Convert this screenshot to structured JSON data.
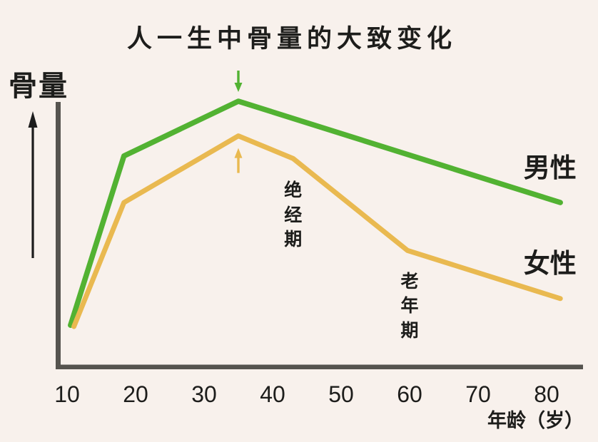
{
  "chart_data": {
    "type": "line",
    "title": "人一生中骨量的大致变化",
    "ylabel": "骨量",
    "xlabel": "年龄（岁）",
    "x_ticks": [
      10,
      20,
      30,
      40,
      50,
      60,
      70,
      80
    ],
    "xlim": [
      10,
      82
    ],
    "ylim": [
      0,
      105
    ],
    "grid": false,
    "y_scale_note": "no numeric y axis; values are relative bone mass, male peak = 100",
    "legend_position": "labels at right end of each line",
    "series": [
      {
        "name": "男性",
        "color": "#52b232",
        "width": 7.5,
        "x": [
          10.5,
          18.3,
          35,
          82
        ],
        "values": [
          16,
          79.5,
          100,
          62
        ],
        "peak_arrow": {
          "direction": "down",
          "age": 35
        },
        "label_pos": {
          "age": 80.5,
          "value": 76
        }
      },
      {
        "name": "女性",
        "color": "#e9b950",
        "width": 7,
        "x": [
          11,
          18.3,
          35,
          43,
          59.7,
          82
        ],
        "values": [
          15.5,
          62,
          87,
          78.5,
          44,
          26
        ],
        "peak_arrow": {
          "direction": "up",
          "age": 35
        },
        "label_pos": {
          "age": 80.5,
          "value": 40
        }
      }
    ],
    "annotations": [
      {
        "text": "绝经期",
        "age": 43,
        "top_value": 71,
        "writing": "vertical"
      },
      {
        "text": "老年期",
        "age": 60,
        "top_value": 37,
        "writing": "vertical"
      }
    ],
    "colors": {
      "background": "#f8f1ec",
      "axis": "#56544f",
      "text": "#1d1d1b",
      "male_line": "#52b232",
      "female_line": "#e9b950"
    }
  }
}
